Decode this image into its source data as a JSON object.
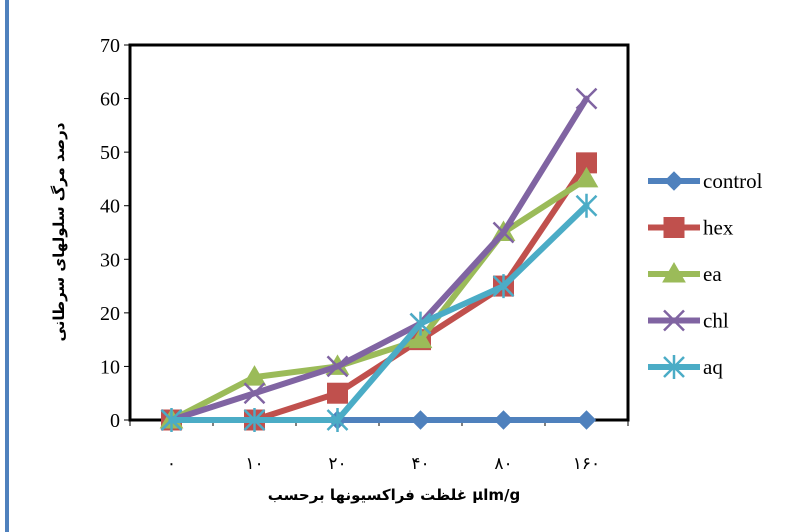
{
  "chart_data": {
    "type": "line",
    "title": "",
    "xlabel": "غلظت فراکسیونها برحسب μlm/g",
    "ylabel": "درصد مرگ  سلولهای سرطانی",
    "categories": [
      "۰",
      "۱۰",
      "۲۰",
      "۴۰",
      "۸۰",
      "۱۶۰"
    ],
    "ylim": [
      0,
      70
    ],
    "yticks": [
      "0",
      "10",
      "20",
      "30",
      "40",
      "50",
      "60",
      "70"
    ],
    "grid": false,
    "legend_position": "right",
    "series": [
      {
        "name": "control",
        "color": "#4f81bd",
        "marker": "diamond",
        "values": [
          0,
          0,
          0,
          0,
          0,
          0
        ]
      },
      {
        "name": "hex",
        "color": "#c0504d",
        "marker": "square",
        "values": [
          0,
          0,
          5,
          15,
          25,
          48
        ]
      },
      {
        "name": "ea",
        "color": "#9bbb59",
        "marker": "triangle",
        "values": [
          0,
          8,
          10,
          15,
          35,
          45
        ]
      },
      {
        "name": "chl",
        "color": "#8064a2",
        "marker": "x",
        "values": [
          0,
          5,
          10,
          18,
          35,
          60
        ]
      },
      {
        "name": "aq",
        "color": "#4bacc6",
        "marker": "star",
        "values": [
          0,
          0,
          0,
          18,
          25,
          40
        ]
      }
    ]
  }
}
